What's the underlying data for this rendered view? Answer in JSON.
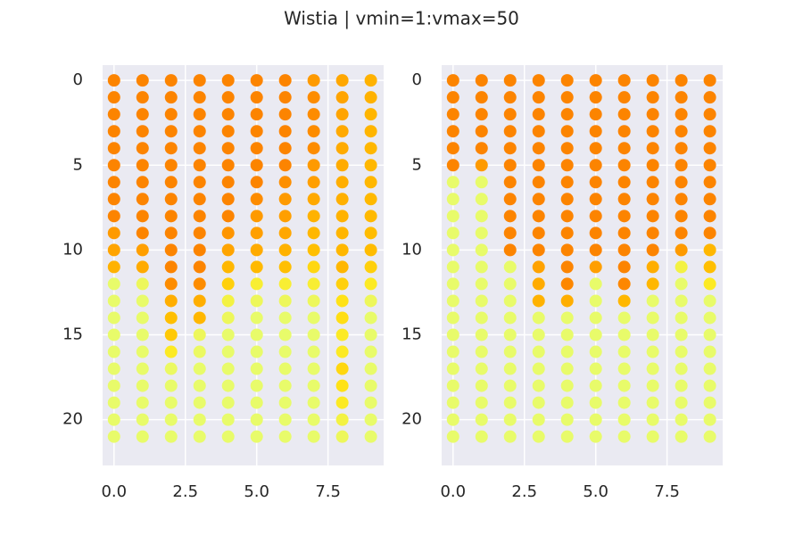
{
  "title": "Wistia | vmin=1:vmax=50",
  "chart_data": [
    {
      "type": "scatter",
      "x": [
        0,
        1,
        2,
        3,
        4,
        5,
        6,
        7,
        8,
        9
      ],
      "y": [
        0,
        1,
        2,
        3,
        4,
        5,
        6,
        7,
        8,
        9,
        10,
        11,
        12,
        13,
        14,
        15,
        16,
        17,
        18,
        19,
        20,
        21
      ],
      "values": [
        [
          48,
          48,
          48,
          48,
          48,
          48,
          48,
          40,
          35,
          30
        ],
        [
          48,
          48,
          48,
          48,
          48,
          48,
          48,
          45,
          36,
          30
        ],
        [
          48,
          48,
          48,
          48,
          48,
          48,
          48,
          45,
          36,
          29
        ],
        [
          48,
          48,
          48,
          48,
          48,
          48,
          48,
          45,
          34,
          29
        ],
        [
          48,
          48,
          48,
          48,
          48,
          48,
          48,
          45,
          33,
          28
        ],
        [
          48,
          48,
          48,
          48,
          48,
          48,
          48,
          40,
          33,
          28
        ],
        [
          48,
          48,
          48,
          48,
          48,
          48,
          44,
          38,
          32,
          28
        ],
        [
          48,
          48,
          48,
          48,
          48,
          45,
          40,
          34,
          31,
          27
        ],
        [
          48,
          48,
          48,
          48,
          48,
          40,
          38,
          30,
          30,
          27
        ],
        [
          40,
          48,
          48,
          48,
          42,
          38,
          35,
          28,
          29,
          26
        ],
        [
          36,
          38,
          48,
          48,
          36,
          33,
          30,
          25,
          28,
          26
        ],
        [
          30,
          33,
          48,
          48,
          28,
          27,
          25,
          18,
          28,
          20
        ],
        [
          3,
          5,
          45,
          45,
          20,
          10,
          10,
          10,
          20,
          12
        ],
        [
          3,
          3,
          32,
          32,
          8,
          5,
          5,
          5,
          15,
          5
        ],
        [
          3,
          3,
          25,
          28,
          5,
          3,
          3,
          3,
          16,
          3
        ],
        [
          3,
          3,
          22,
          5,
          3,
          3,
          3,
          3,
          12,
          3
        ],
        [
          3,
          3,
          12,
          4,
          3,
          3,
          3,
          3,
          12,
          3
        ],
        [
          3,
          3,
          4,
          3,
          3,
          3,
          3,
          3,
          18,
          3
        ],
        [
          3,
          3,
          3,
          3,
          3,
          3,
          3,
          3,
          15,
          3
        ],
        [
          3,
          3,
          3,
          3,
          3,
          3,
          3,
          3,
          12,
          3
        ],
        [
          3,
          3,
          3,
          3,
          3,
          3,
          3,
          3,
          8,
          3
        ],
        [
          3,
          3,
          3,
          3,
          3,
          3,
          3,
          3,
          5,
          3
        ]
      ],
      "vmin": 1,
      "vmax": 50,
      "colormap": [
        "#e4ff7a",
        "#ffe81a",
        "#ffbd00",
        "#ffa000",
        "#fc7f00"
      ],
      "xlim": [
        -0.4,
        9.45
      ],
      "ylim": [
        22.7,
        -0.9
      ],
      "xticks": [
        {
          "value": 0,
          "label": "0.0"
        },
        2.5,
        {
          "value": 5,
          "label": "5.0"
        },
        7.5
      ],
      "yticks": [
        0,
        5,
        10,
        15,
        20
      ],
      "grid": true
    },
    {
      "type": "scatter",
      "x": [
        0,
        1,
        2,
        3,
        4,
        5,
        6,
        7,
        8,
        9
      ],
      "y": [
        0,
        1,
        2,
        3,
        4,
        5,
        6,
        7,
        8,
        9,
        10,
        11,
        12,
        13,
        14,
        15,
        16,
        17,
        18,
        19,
        20,
        21
      ],
      "values": [
        [
          48,
          48,
          48,
          48,
          48,
          48,
          48,
          48,
          48,
          48
        ],
        [
          48,
          48,
          48,
          48,
          48,
          48,
          48,
          48,
          48,
          48
        ],
        [
          48,
          48,
          48,
          48,
          48,
          48,
          48,
          48,
          48,
          48
        ],
        [
          48,
          48,
          48,
          48,
          48,
          48,
          48,
          48,
          48,
          48
        ],
        [
          48,
          48,
          48,
          48,
          48,
          48,
          48,
          48,
          48,
          48
        ],
        [
          48,
          40,
          48,
          48,
          48,
          48,
          48,
          48,
          48,
          48
        ],
        [
          3,
          3,
          48,
          48,
          48,
          48,
          48,
          48,
          48,
          48
        ],
        [
          3,
          3,
          48,
          48,
          48,
          48,
          48,
          48,
          48,
          48
        ],
        [
          3,
          3,
          48,
          48,
          48,
          48,
          48,
          48,
          48,
          48
        ],
        [
          3,
          3,
          48,
          48,
          48,
          48,
          48,
          48,
          48,
          48
        ],
        [
          3,
          3,
          48,
          48,
          48,
          48,
          48,
          48,
          40,
          28
        ],
        [
          3,
          3,
          3,
          37,
          48,
          38,
          48,
          32,
          8,
          25
        ],
        [
          3,
          3,
          3,
          33,
          47,
          3,
          47,
          28,
          3,
          12
        ],
        [
          3,
          3,
          3,
          30,
          32,
          3,
          28,
          3,
          3,
          3
        ],
        [
          3,
          3,
          3,
          3,
          3,
          3,
          3,
          3,
          3,
          3
        ],
        [
          3,
          3,
          3,
          3,
          3,
          3,
          3,
          3,
          3,
          3
        ],
        [
          3,
          3,
          3,
          3,
          3,
          3,
          3,
          3,
          3,
          3
        ],
        [
          3,
          3,
          3,
          3,
          3,
          3,
          3,
          3,
          3,
          3
        ],
        [
          3,
          3,
          3,
          3,
          3,
          3,
          3,
          3,
          3,
          3
        ],
        [
          3,
          3,
          3,
          3,
          3,
          3,
          3,
          3,
          3,
          3
        ],
        [
          3,
          3,
          3,
          3,
          3,
          3,
          3,
          3,
          3,
          3
        ],
        [
          3,
          3,
          3,
          3,
          3,
          3,
          3,
          3,
          3,
          3
        ]
      ],
      "vmin": 1,
      "vmax": 50,
      "colormap": [
        "#e4ff7a",
        "#ffe81a",
        "#ffbd00",
        "#ffa000",
        "#fc7f00"
      ],
      "xlim": [
        -0.4,
        9.45
      ],
      "ylim": [
        22.7,
        -0.9
      ],
      "xticks": [
        {
          "value": 0,
          "label": "0.0"
        },
        2.5,
        {
          "value": 5,
          "label": "5.0"
        },
        7.5
      ],
      "yticks": [
        0,
        5,
        10,
        15,
        20
      ],
      "grid": true
    }
  ]
}
